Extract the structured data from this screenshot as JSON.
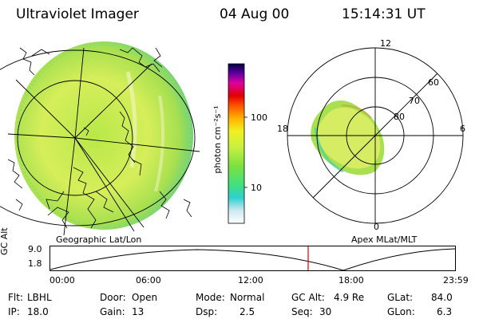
{
  "header": {
    "instrument": "Ultraviolet Imager",
    "date": "04 Aug 00",
    "time": "15:14:31 UT"
  },
  "colorbar": {
    "unit_label": "photon cm⁻²s⁻¹",
    "tick_labels": [
      "100",
      "10"
    ],
    "scale": "log"
  },
  "polar_plot": {
    "mlt_labels": [
      "12",
      "18",
      "6",
      "0"
    ],
    "lat_labels": [
      "60",
      "70",
      "80"
    ]
  },
  "panel_labels": {
    "left": "Geographic Lat/Lon",
    "right": "Apex MLat/MLT"
  },
  "gc_alt_plot": {
    "ylabel": "GC Alt",
    "y_ticks": [
      "9.0",
      "1.8"
    ],
    "x_ticks": [
      "00:00",
      "06:00",
      "12:00",
      "18:00",
      "23:59"
    ],
    "current_time_marker": "15:14",
    "marker_color": "#e00000"
  },
  "info": {
    "flt_label": "Flt:",
    "flt_value": "LBHL",
    "ip_label": "IP:",
    "ip_value": "18.0",
    "door_label": "Door:",
    "door_value": "Open",
    "gain_label": "Gain:",
    "gain_value": "13",
    "mode_label": "Mode:",
    "mode_value": "Normal",
    "dsp_label": "Dsp:",
    "dsp_value": "2.5",
    "gcalt_label": "GC Alt:",
    "gcalt_value": "4.9 Re",
    "seq_label": "Seq:",
    "seq_value": "30",
    "glat_label": "GLat:",
    "glat_value": "84.0",
    "glon_label": "GLon:",
    "glon_value": "6.3"
  }
}
